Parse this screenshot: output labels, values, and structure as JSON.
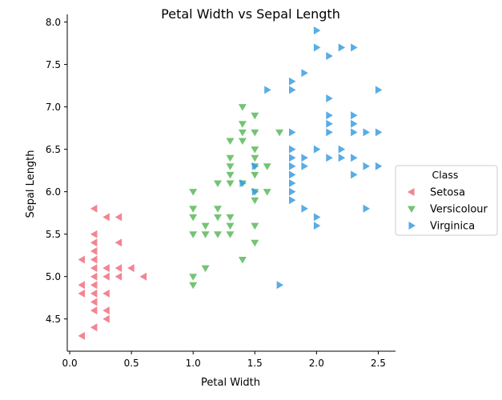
{
  "chart_data": {
    "type": "scatter",
    "title": "Petal Width vs Sepal Length",
    "xlabel": "Petal Width",
    "ylabel": "Sepal Length",
    "xlim": [
      -0.02,
      2.64
    ],
    "ylim": [
      4.12,
      8.09
    ],
    "xticks": [
      0.0,
      0.5,
      1.0,
      1.5,
      2.0,
      2.5
    ],
    "xtick_labels": [
      "0.0",
      "0.5",
      "1.0",
      "1.5",
      "2.0",
      "2.5"
    ],
    "yticks": [
      4.5,
      5.0,
      5.5,
      6.0,
      6.5,
      7.0,
      7.5,
      8.0
    ],
    "ytick_labels": [
      "4.5",
      "5.0",
      "5.5",
      "6.0",
      "6.5",
      "7.0",
      "7.5",
      "8.0"
    ],
    "grid": false,
    "legend": {
      "title": "Class",
      "position": "center-right"
    },
    "series": [
      {
        "name": "Setosa",
        "color": "#f0707f",
        "marker": "triangle-left",
        "points": [
          [
            0.1,
            4.3
          ],
          [
            0.1,
            4.8
          ],
          [
            0.1,
            4.9
          ],
          [
            0.1,
            5.2
          ],
          [
            0.2,
            4.4
          ],
          [
            0.2,
            4.6
          ],
          [
            0.2,
            4.7
          ],
          [
            0.2,
            4.8
          ],
          [
            0.2,
            4.9
          ],
          [
            0.2,
            5.0
          ],
          [
            0.2,
            5.1
          ],
          [
            0.2,
            5.2
          ],
          [
            0.2,
            5.3
          ],
          [
            0.2,
            5.4
          ],
          [
            0.2,
            5.5
          ],
          [
            0.2,
            5.8
          ],
          [
            0.3,
            4.5
          ],
          [
            0.3,
            4.6
          ],
          [
            0.3,
            4.8
          ],
          [
            0.3,
            5.0
          ],
          [
            0.3,
            5.1
          ],
          [
            0.3,
            5.7
          ],
          [
            0.4,
            5.0
          ],
          [
            0.4,
            5.1
          ],
          [
            0.4,
            5.4
          ],
          [
            0.4,
            5.7
          ],
          [
            0.5,
            5.1
          ],
          [
            0.6,
            5.0
          ]
        ]
      },
      {
        "name": "Versicolour",
        "color": "#5cb85c",
        "marker": "triangle-down",
        "points": [
          [
            1.0,
            4.9
          ],
          [
            1.0,
            5.0
          ],
          [
            1.0,
            5.5
          ],
          [
            1.0,
            5.7
          ],
          [
            1.0,
            5.8
          ],
          [
            1.0,
            6.0
          ],
          [
            1.1,
            5.1
          ],
          [
            1.1,
            5.5
          ],
          [
            1.1,
            5.6
          ],
          [
            1.2,
            5.5
          ],
          [
            1.2,
            5.7
          ],
          [
            1.2,
            5.8
          ],
          [
            1.2,
            6.1
          ],
          [
            1.3,
            5.5
          ],
          [
            1.3,
            5.6
          ],
          [
            1.3,
            5.7
          ],
          [
            1.3,
            6.1
          ],
          [
            1.3,
            6.2
          ],
          [
            1.3,
            6.3
          ],
          [
            1.3,
            6.4
          ],
          [
            1.3,
            6.6
          ],
          [
            1.4,
            5.2
          ],
          [
            1.4,
            6.1
          ],
          [
            1.4,
            6.6
          ],
          [
            1.4,
            6.7
          ],
          [
            1.4,
            6.8
          ],
          [
            1.4,
            7.0
          ],
          [
            1.5,
            5.4
          ],
          [
            1.5,
            5.6
          ],
          [
            1.5,
            5.9
          ],
          [
            1.5,
            6.0
          ],
          [
            1.5,
            6.2
          ],
          [
            1.5,
            6.3
          ],
          [
            1.5,
            6.4
          ],
          [
            1.5,
            6.5
          ],
          [
            1.5,
            6.7
          ],
          [
            1.5,
            6.9
          ],
          [
            1.6,
            6.0
          ],
          [
            1.6,
            6.3
          ],
          [
            1.7,
            6.7
          ]
        ]
      },
      {
        "name": "Virginica",
        "color": "#3c9ee0",
        "marker": "triangle-right",
        "points": [
          [
            1.4,
            6.1
          ],
          [
            1.5,
            6.0
          ],
          [
            1.5,
            6.3
          ],
          [
            1.6,
            7.2
          ],
          [
            1.7,
            4.9
          ],
          [
            1.8,
            5.9
          ],
          [
            1.8,
            6.0
          ],
          [
            1.8,
            6.1
          ],
          [
            1.8,
            6.2
          ],
          [
            1.8,
            6.3
          ],
          [
            1.8,
            6.4
          ],
          [
            1.8,
            6.5
          ],
          [
            1.8,
            6.7
          ],
          [
            1.8,
            7.2
          ],
          [
            1.8,
            7.3
          ],
          [
            1.9,
            5.8
          ],
          [
            1.9,
            6.3
          ],
          [
            1.9,
            6.4
          ],
          [
            1.9,
            7.4
          ],
          [
            2.0,
            5.6
          ],
          [
            2.0,
            5.7
          ],
          [
            2.0,
            6.5
          ],
          [
            2.0,
            7.7
          ],
          [
            2.0,
            7.9
          ],
          [
            2.1,
            6.4
          ],
          [
            2.1,
            6.7
          ],
          [
            2.1,
            6.8
          ],
          [
            2.1,
            6.9
          ],
          [
            2.1,
            7.1
          ],
          [
            2.1,
            7.6
          ],
          [
            2.2,
            6.4
          ],
          [
            2.2,
            6.5
          ],
          [
            2.2,
            7.7
          ],
          [
            2.3,
            6.2
          ],
          [
            2.3,
            6.4
          ],
          [
            2.3,
            6.7
          ],
          [
            2.3,
            6.8
          ],
          [
            2.3,
            6.9
          ],
          [
            2.3,
            7.7
          ],
          [
            2.4,
            5.8
          ],
          [
            2.4,
            6.3
          ],
          [
            2.4,
            6.7
          ],
          [
            2.5,
            6.3
          ],
          [
            2.5,
            6.7
          ],
          [
            2.5,
            7.2
          ]
        ]
      }
    ]
  }
}
